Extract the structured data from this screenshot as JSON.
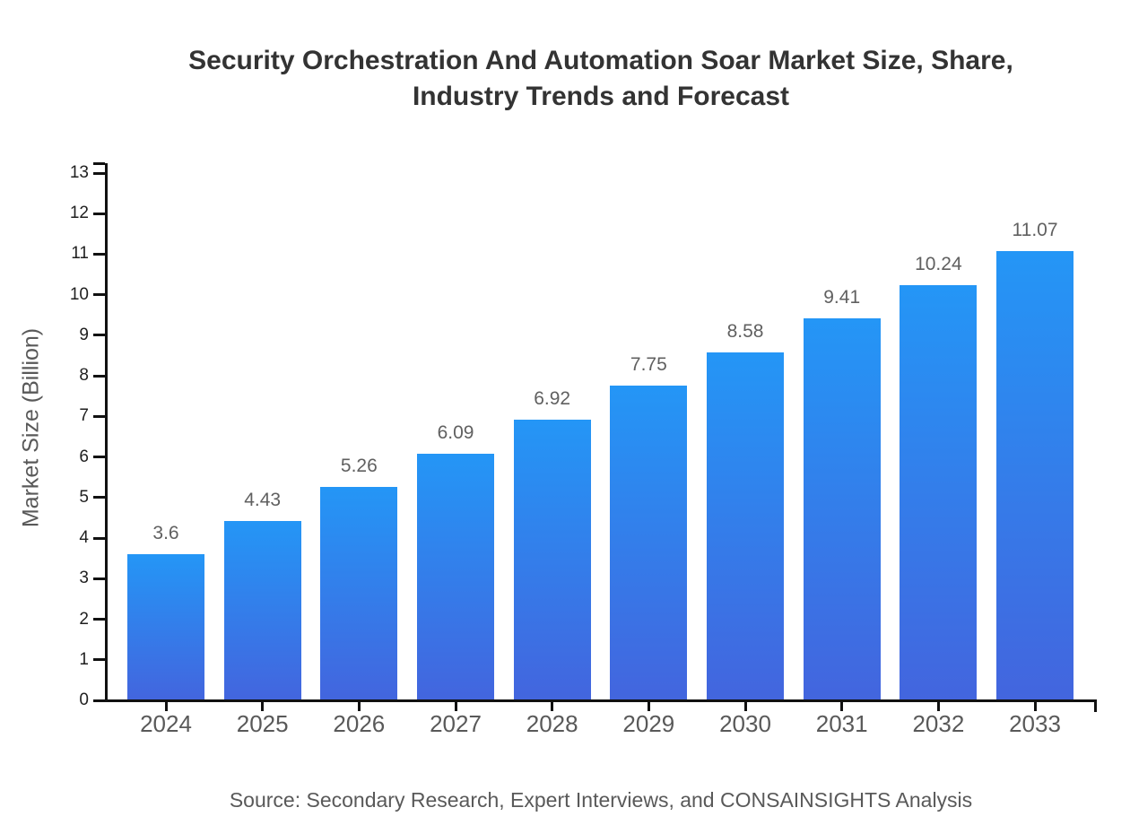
{
  "chart_data": {
    "type": "bar",
    "title": "Security Orchestration And Automation Soar Market Size, Share, Industry Trends and Forecast",
    "categories": [
      "2024",
      "2025",
      "2026",
      "2027",
      "2028",
      "2029",
      "2030",
      "2031",
      "2032",
      "2033"
    ],
    "values": [
      3.6,
      4.43,
      5.26,
      6.09,
      6.92,
      7.75,
      8.58,
      9.41,
      10.24,
      11.07
    ],
    "value_labels": [
      "3.6",
      "4.43",
      "5.26",
      "6.09",
      "6.92",
      "7.75",
      "8.58",
      "9.41",
      "10.24",
      "11.07"
    ],
    "xlabel": "",
    "ylabel": "Market Size (Billion)",
    "ylim": [
      0,
      13
    ],
    "ytick_step": 1,
    "yticks": [
      "0",
      "1",
      "2",
      "3",
      "4",
      "5",
      "6",
      "7",
      "8",
      "9",
      "10",
      "11",
      "12",
      "13"
    ],
    "grid": false,
    "legend": "none",
    "source_note": "Source: Secondary Research, Expert Interviews, and CONSAINSIGHTS Analysis"
  },
  "colors": {
    "background": "#ffffff",
    "bar_top": "#2496f6",
    "bar_bottom": "#4365de",
    "axis": "#111111",
    "y_tick_label": "#1f1f1f",
    "x_tick_label": "#595959",
    "value_label": "#606060",
    "title": "#333333",
    "ylabel": "#595959",
    "source": "#595959"
  }
}
